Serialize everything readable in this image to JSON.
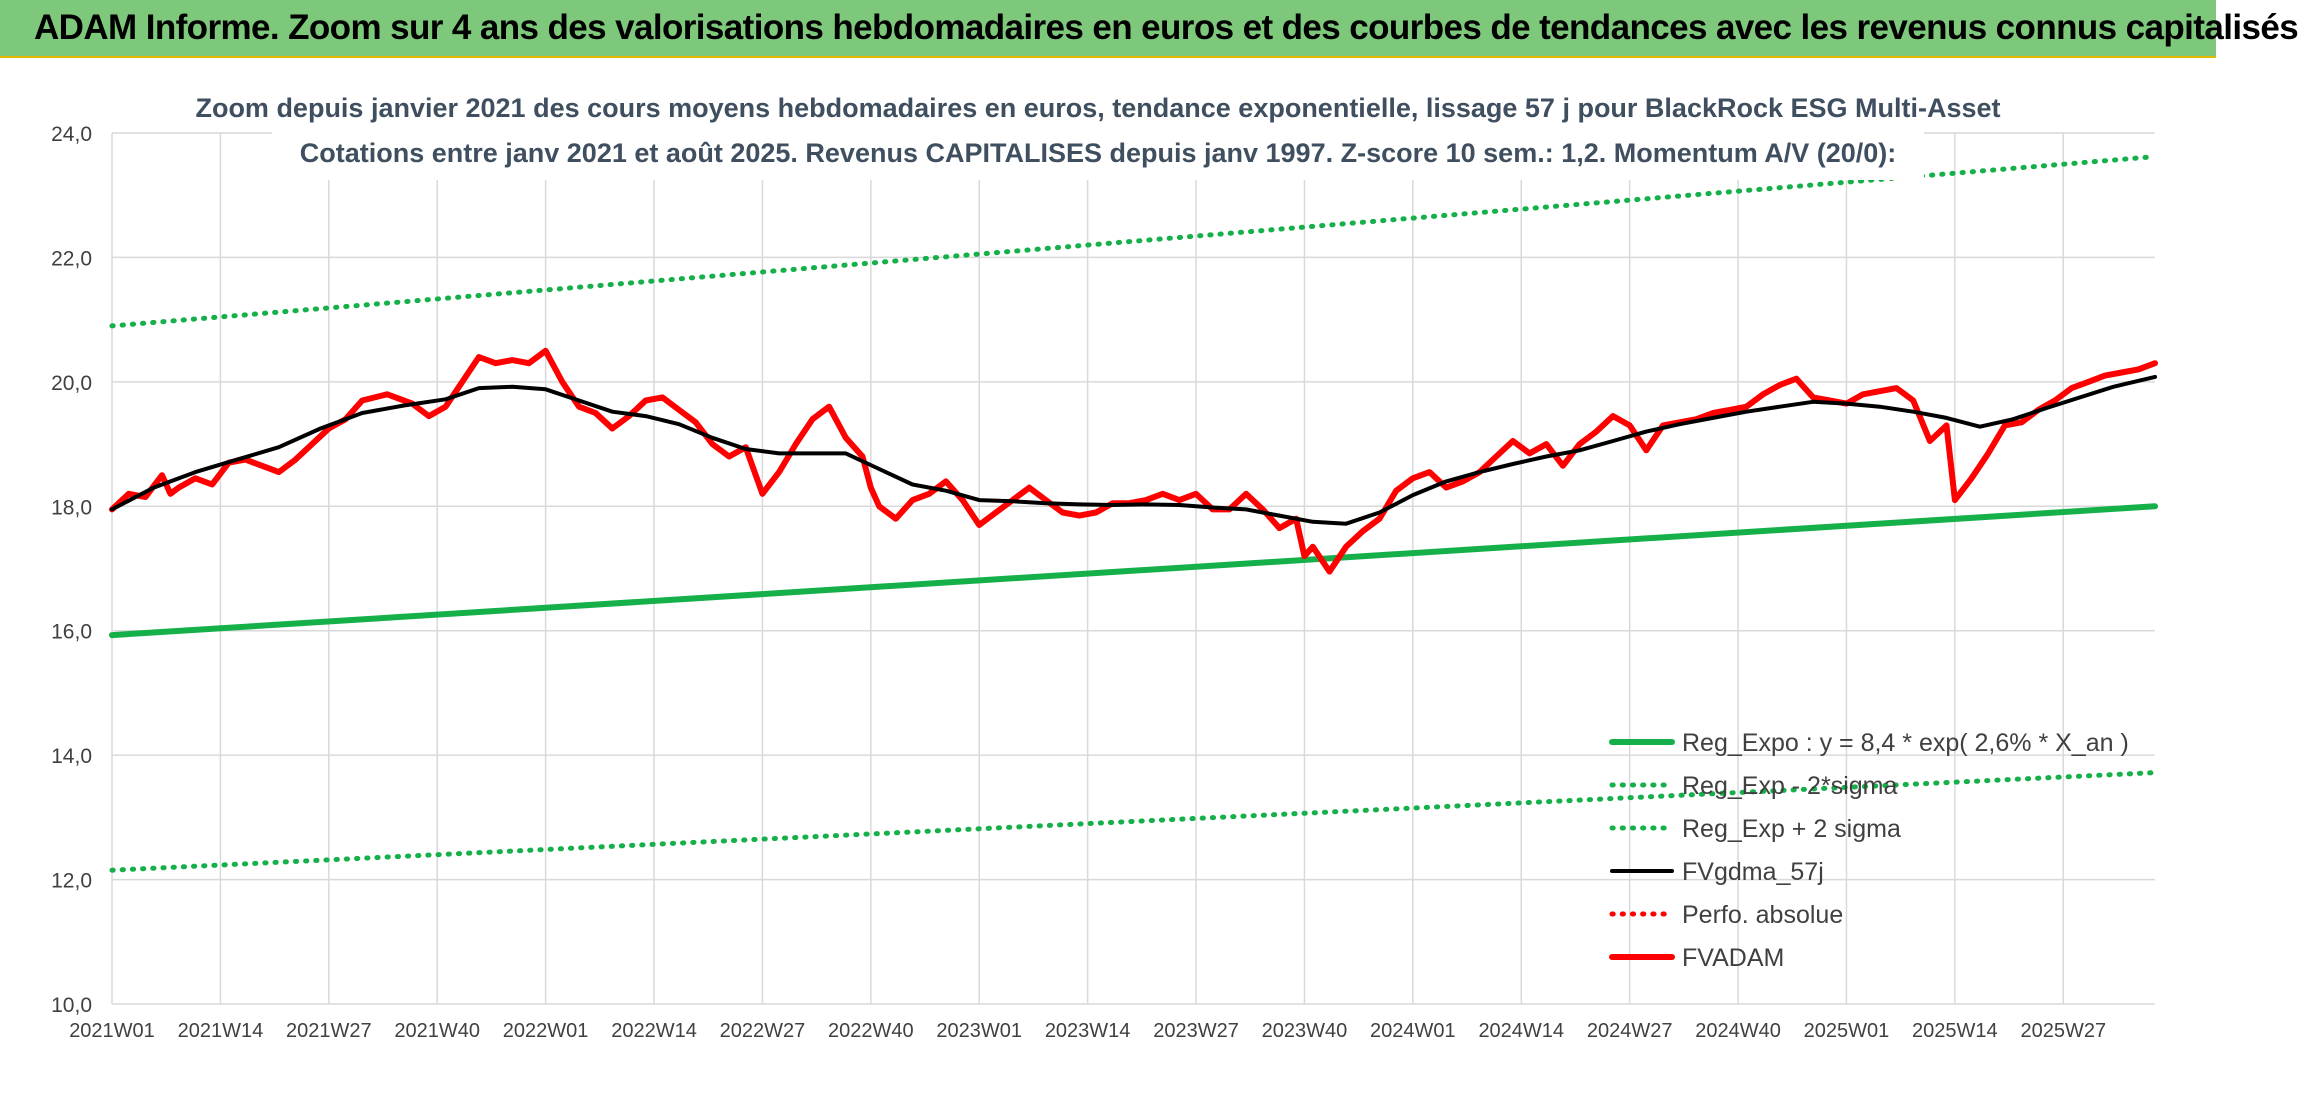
{
  "banner": {
    "title": "ADAM Informe. Zoom sur 4 ans des valorisations hebdomadaires en euros et des courbes de tendances avec les revenus connus capitalisés"
  },
  "colors": {
    "regression": "#16b04a",
    "sigma_band": "#16b04a",
    "smoothed": "#000000",
    "perfo": "#ff0000",
    "price": "#ff0000",
    "grid": "#d9d9d9",
    "axis_text": "#404040"
  },
  "chart_data": {
    "type": "line",
    "title": "Zoom depuis janvier 2021 des cours moyens hebdomadaires en euros, tendance exponentielle, lissage 57 j pour BlackRock ESG Multi-Asset",
    "subtitle": "Cotations entre janv 2021 et août 2025. Revenus CAPITALISES depuis janv 1997. Z-score 10 sem.: 1,2. Momentum A/V (20/0):",
    "xlabel": "",
    "ylabel": "",
    "ylim": [
      10,
      24
    ],
    "y_ticks": [
      "10,0",
      "12,0",
      "14,0",
      "16,0",
      "18,0",
      "20,0",
      "22,0",
      "24,0"
    ],
    "x_range": [
      0,
      245
    ],
    "x_ticks": [
      {
        "label": "2021W01",
        "week": 0
      },
      {
        "label": "2021W14",
        "week": 13
      },
      {
        "label": "2021W27",
        "week": 26
      },
      {
        "label": "2021W40",
        "week": 39
      },
      {
        "label": "2022W01",
        "week": 52
      },
      {
        "label": "2022W14",
        "week": 65
      },
      {
        "label": "2022W27",
        "week": 78
      },
      {
        "label": "2022W40",
        "week": 91
      },
      {
        "label": "2023W01",
        "week": 104
      },
      {
        "label": "2023W14",
        "week": 117
      },
      {
        "label": "2023W27",
        "week": 130
      },
      {
        "label": "2023W40",
        "week": 143
      },
      {
        "label": "2024W01",
        "week": 156
      },
      {
        "label": "2024W14",
        "week": 169
      },
      {
        "label": "2024W27",
        "week": 182
      },
      {
        "label": "2024W40",
        "week": 195
      },
      {
        "label": "2025W01",
        "week": 208
      },
      {
        "label": "2025W14",
        "week": 221
      },
      {
        "label": "2025W27",
        "week": 234
      }
    ],
    "grid": true,
    "legend_position": "bottom-right",
    "series": [
      {
        "name": "Reg_Expo : y = 8,4 * exp( 2,6% *  X_an )",
        "style": "solid-thick",
        "color": "#16b04a",
        "x": [
          0,
          245
        ],
        "y": [
          15.93,
          18.0
        ]
      },
      {
        "name": "Reg_Exp - 2*sigma",
        "style": "dotted",
        "color": "#16b04a",
        "x": [
          0,
          245
        ],
        "y": [
          12.15,
          13.72
        ]
      },
      {
        "name": "Reg_Exp + 2 sigma",
        "style": "dotted",
        "color": "#16b04a",
        "x": [
          0,
          245
        ],
        "y": [
          20.9,
          23.62
        ]
      },
      {
        "name": "FVgdma_57j",
        "style": "solid",
        "color": "#000000",
        "x": [
          0,
          5,
          10,
          15,
          20,
          25,
          30,
          35,
          40,
          44,
          48,
          52,
          56,
          60,
          64,
          68,
          72,
          76,
          80,
          84,
          88,
          92,
          96,
          100,
          104,
          108,
          112,
          116,
          120,
          124,
          128,
          132,
          136,
          140,
          144,
          148,
          152,
          156,
          160,
          164,
          168,
          172,
          176,
          180,
          184,
          188,
          192,
          196,
          200,
          204,
          208,
          212,
          216,
          220,
          224,
          228,
          232,
          236,
          240,
          245
        ],
        "y": [
          17.95,
          18.3,
          18.55,
          18.75,
          18.95,
          19.25,
          19.5,
          19.62,
          19.72,
          19.9,
          19.92,
          19.88,
          19.7,
          19.52,
          19.45,
          19.32,
          19.1,
          18.92,
          18.85,
          18.85,
          18.85,
          18.6,
          18.35,
          18.25,
          18.1,
          18.08,
          18.05,
          18.03,
          18.02,
          18.03,
          18.02,
          17.98,
          17.95,
          17.85,
          17.75,
          17.72,
          17.9,
          18.18,
          18.4,
          18.55,
          18.68,
          18.8,
          18.9,
          19.05,
          19.2,
          19.32,
          19.42,
          19.52,
          19.6,
          19.68,
          19.65,
          19.6,
          19.52,
          19.42,
          19.28,
          19.4,
          19.58,
          19.75,
          19.92,
          20.08
        ]
      },
      {
        "name": "Perfo. absolue",
        "style": "dotted",
        "color": "#ff0000",
        "x": [],
        "y": []
      },
      {
        "name": "FVADAM",
        "style": "solid-thick",
        "color": "#ff0000",
        "x": [
          0,
          2,
          4,
          6,
          7,
          8,
          10,
          12,
          14,
          16,
          18,
          20,
          22,
          24,
          26,
          28,
          30,
          33,
          36,
          38,
          40,
          42,
          44,
          46,
          48,
          50,
          52,
          54,
          56,
          58,
          60,
          62,
          64,
          66,
          68,
          70,
          72,
          74,
          76,
          78,
          80,
          82,
          84,
          86,
          88,
          90,
          91,
          92,
          94,
          96,
          98,
          100,
          102,
          104,
          106,
          108,
          110,
          112,
          114,
          116,
          118,
          120,
          122,
          124,
          126,
          128,
          130,
          132,
          134,
          136,
          138,
          140,
          142,
          143,
          144,
          146,
          148,
          150,
          152,
          154,
          156,
          158,
          160,
          162,
          164,
          166,
          168,
          170,
          172,
          174,
          176,
          178,
          180,
          182,
          184,
          186,
          188,
          190,
          192,
          194,
          196,
          198,
          200,
          202,
          204,
          206,
          208,
          210,
          212,
          214,
          216,
          218,
          220,
          221,
          223,
          225,
          227,
          229,
          231,
          233,
          235,
          237,
          239,
          241,
          243,
          245
        ],
        "y": [
          17.95,
          18.2,
          18.15,
          18.5,
          18.2,
          18.3,
          18.45,
          18.35,
          18.7,
          18.75,
          18.65,
          18.55,
          18.75,
          19.0,
          19.25,
          19.4,
          19.7,
          19.8,
          19.65,
          19.45,
          19.6,
          20.0,
          20.4,
          20.3,
          20.35,
          20.3,
          20.5,
          20.0,
          19.6,
          19.5,
          19.25,
          19.45,
          19.7,
          19.75,
          19.55,
          19.35,
          19.0,
          18.8,
          18.95,
          18.2,
          18.55,
          19.0,
          19.4,
          19.6,
          19.1,
          18.8,
          18.3,
          18.0,
          17.8,
          18.1,
          18.2,
          18.4,
          18.1,
          17.7,
          17.9,
          18.1,
          18.3,
          18.1,
          17.9,
          17.85,
          17.9,
          18.05,
          18.05,
          18.1,
          18.2,
          18.1,
          18.2,
          17.95,
          17.95,
          18.2,
          17.95,
          17.65,
          17.8,
          17.2,
          17.35,
          16.95,
          17.35,
          17.6,
          17.8,
          18.25,
          18.45,
          18.55,
          18.3,
          18.4,
          18.55,
          18.8,
          19.05,
          18.85,
          19.0,
          18.65,
          19.0,
          19.2,
          19.45,
          19.3,
          18.9,
          19.3,
          19.35,
          19.4,
          19.5,
          19.55,
          19.6,
          19.8,
          19.95,
          20.05,
          19.75,
          19.7,
          19.65,
          19.8,
          19.85,
          19.9,
          19.7,
          19.05,
          19.3,
          18.1,
          18.45,
          18.85,
          19.3,
          19.35,
          19.55,
          19.7,
          19.9,
          20.0,
          20.1,
          20.15,
          20.2,
          20.3
        ]
      }
    ]
  }
}
